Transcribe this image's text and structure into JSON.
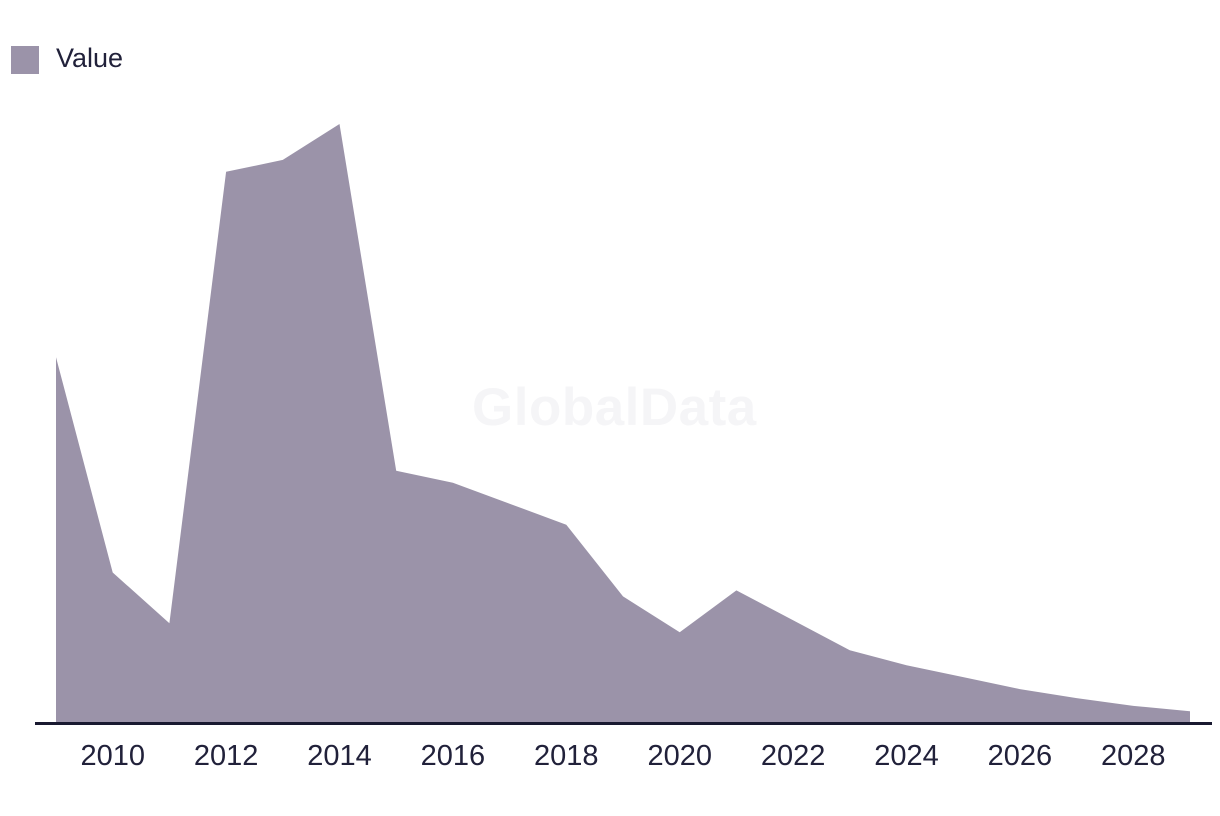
{
  "legend": {
    "label": "Value"
  },
  "watermark": {
    "text": "GlobalData"
  },
  "colors": {
    "area": "#9b93a9",
    "axis_line": "#191930",
    "tick_text": "#21213a",
    "legend_text": "#21213a",
    "watermark_text": "#f5f5f7"
  },
  "chart_data": {
    "type": "area",
    "title": "",
    "xlabel": "",
    "ylabel": "",
    "grid": false,
    "y_axis_visible": false,
    "legend_position": "top-left",
    "x_ticks": [
      2010,
      2012,
      2014,
      2016,
      2018,
      2020,
      2022,
      2024,
      2026,
      2028
    ],
    "xlim": [
      2009,
      2029
    ],
    "ylim": [
      0,
      100
    ],
    "series": [
      {
        "name": "Value",
        "x": [
          2009,
          2010,
          2011,
          2012,
          2013,
          2014,
          2015,
          2016,
          2017,
          2018,
          2019,
          2020,
          2021,
          2022,
          2023,
          2024,
          2025,
          2026,
          2027,
          2028,
          2029
        ],
        "values": [
          61,
          25,
          16.5,
          92,
          94,
          100,
          42,
          40,
          36.5,
          33,
          21,
          15,
          22,
          17,
          12,
          9.5,
          7.5,
          5.5,
          4,
          2.7,
          1.8
        ]
      }
    ]
  }
}
